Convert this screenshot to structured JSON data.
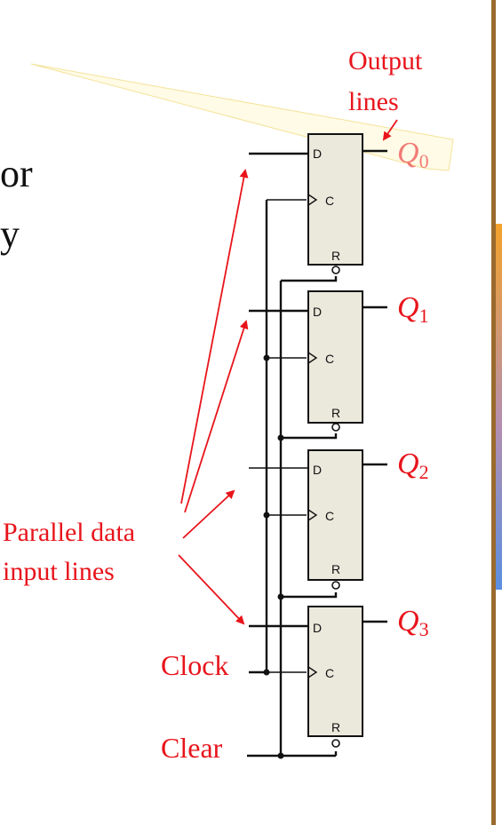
{
  "diagram": {
    "labels": {
      "output_lines_1": "Output",
      "output_lines_2": "lines",
      "parallel_1": "Parallel data",
      "parallel_2": "input lines",
      "clock": "Clock",
      "clear": "Clear"
    },
    "outputs": [
      {
        "symbol": "Q",
        "sub": "0"
      },
      {
        "symbol": "Q",
        "sub": "1"
      },
      {
        "symbol": "Q",
        "sub": "2"
      },
      {
        "symbol": "Q",
        "sub": "3"
      }
    ],
    "pins": {
      "d": "D",
      "c": "C",
      "r": "R"
    },
    "cutoff_text": {
      "line1": "or",
      "line2": "y"
    }
  },
  "colors": {
    "label_red": "#e8141b",
    "ff_fill": "#ebe8dc",
    "side_bar_brown": "#9a6a2e",
    "side_bar_orange": "#f4a22a",
    "side_bar_blue": "#5a8fe0"
  }
}
